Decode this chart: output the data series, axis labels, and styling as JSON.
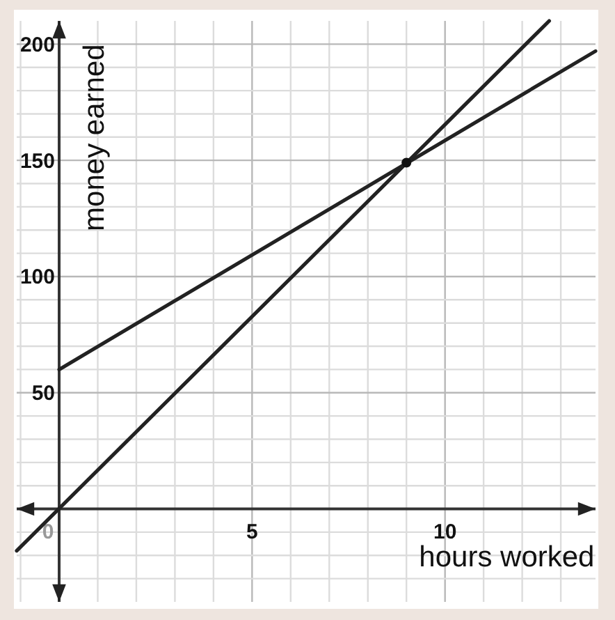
{
  "chart_data": {
    "type": "line",
    "xlabel": "hours worked",
    "ylabel": "money earned",
    "xlim": [
      -1.1,
      13.9
    ],
    "ylim": [
      -40,
      210
    ],
    "xticks": [
      {
        "value": -1,
        "label": null
      },
      {
        "value": 0,
        "label": "0"
      },
      {
        "value": 1,
        "label": null
      },
      {
        "value": 2,
        "label": null
      },
      {
        "value": 3,
        "label": null
      },
      {
        "value": 4,
        "label": null
      },
      5,
      {
        "value": 6,
        "label": null
      },
      {
        "value": 7,
        "label": null
      },
      {
        "value": 8,
        "label": null
      },
      {
        "value": 9,
        "label": null
      },
      10,
      {
        "value": 11,
        "label": null
      },
      {
        "value": 12,
        "label": null
      },
      {
        "value": 13,
        "label": null
      }
    ],
    "yticks": [
      {
        "value": -30,
        "label": null
      },
      {
        "value": -20,
        "label": null
      },
      {
        "value": -10,
        "label": null
      },
      {
        "value": 0,
        "label": null
      },
      {
        "value": 10,
        "label": null
      },
      {
        "value": 20,
        "label": null
      },
      {
        "value": 30,
        "label": null
      },
      {
        "value": 40,
        "label": null
      },
      50,
      {
        "value": 60,
        "label": null
      },
      {
        "value": 70,
        "label": null
      },
      {
        "value": 80,
        "label": null
      },
      {
        "value": 90,
        "label": null
      },
      100,
      {
        "value": 110,
        "label": null
      },
      {
        "value": 120,
        "label": null
      },
      {
        "value": 130,
        "label": null
      },
      {
        "value": 140,
        "label": null
      },
      150,
      {
        "value": 160,
        "label": null
      },
      {
        "value": 170,
        "label": null
      },
      {
        "value": 180,
        "label": null
      },
      {
        "value": 190,
        "label": null
      },
      200
    ],
    "grid": true,
    "marker": "none",
    "line_style": "solid",
    "series": [
      {
        "color": "#222222",
        "x": [
          0,
          13.9
        ],
        "values": [
          60,
          197
        ]
      },
      {
        "color": "#222222",
        "x": [
          -1.1,
          12.7
        ],
        "values": [
          -18,
          210
        ]
      },
      {
        "type": "scatter",
        "marker": "circle",
        "color": "#111111",
        "x": [
          9
        ],
        "values": [
          149
        ]
      }
    ]
  }
}
